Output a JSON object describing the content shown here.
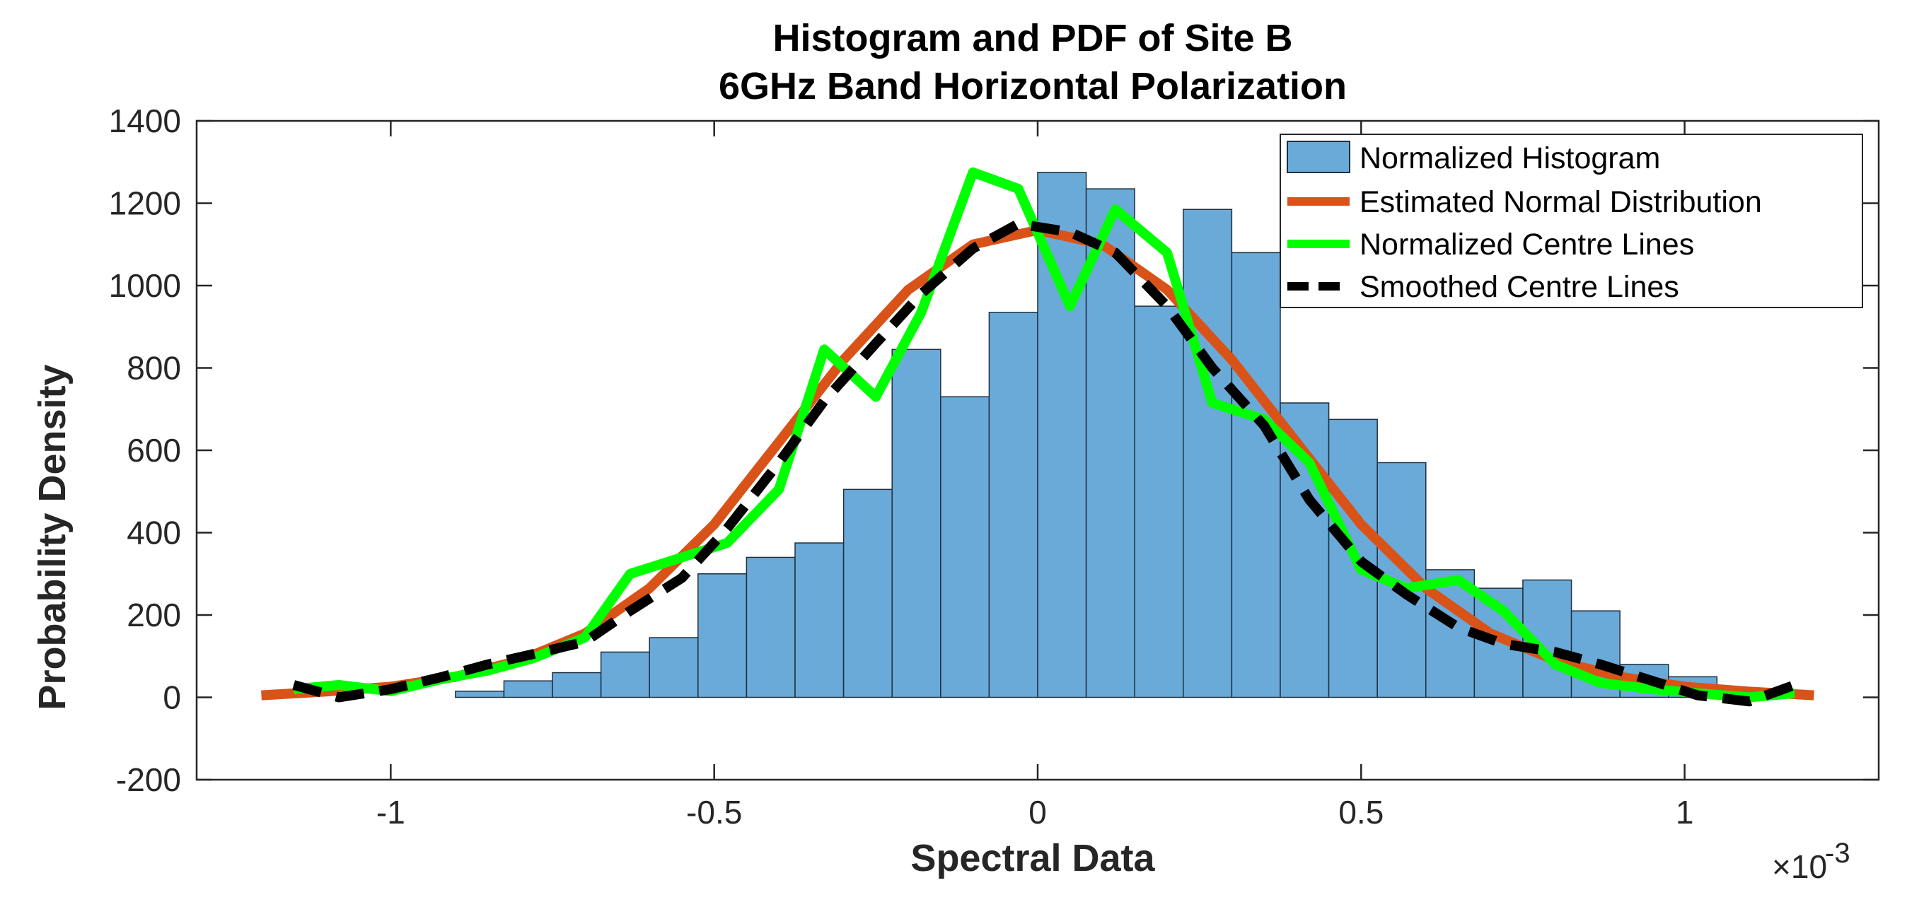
{
  "chart_data": {
    "type": "histogram",
    "title": [
      "Histogram and PDF of Site B",
      "6GHz Band Horizontal Polarization"
    ],
    "xlabel": "Spectral Data",
    "ylabel": "Probability Density",
    "x_exponent_label": "×10",
    "x_exponent_power": "-3",
    "xlim": [
      -1.3,
      1.3
    ],
    "ylim": [
      -200,
      1400
    ],
    "xticks": [
      -1,
      -0.5,
      0,
      0.5,
      1
    ],
    "xtick_labels": [
      "-1",
      "-0.5",
      "0",
      "0.5",
      "1"
    ],
    "yticks": [
      -200,
      0,
      200,
      400,
      600,
      800,
      1000,
      1200,
      1400
    ],
    "ytick_labels": [
      "-200",
      "0",
      "200",
      "400",
      "600",
      "800",
      "1000",
      "1200",
      "1400"
    ],
    "grid": false,
    "legend_position": "top-right",
    "colors": {
      "histogram_fill": "#6aaad8",
      "histogram_edge": "#1f2f3f",
      "normal": "#d95319",
      "centre": "#00ff00",
      "smoothed": "#000000",
      "axis": "#262626"
    },
    "histogram": {
      "name": "Normalized Histogram",
      "bin_width": 0.075,
      "bin_edges_start": -0.9,
      "values": [
        15,
        40,
        60,
        110,
        145,
        300,
        340,
        375,
        505,
        845,
        730,
        935,
        1275,
        1235,
        950,
        1185,
        1080,
        715,
        675,
        570,
        310,
        265,
        285,
        210,
        80,
        50
      ]
    },
    "series": [
      {
        "name": "Estimated Normal Distribution",
        "style": "solid",
        "x": [
          -1.2,
          -1.1,
          -1.0,
          -0.9,
          -0.8,
          -0.7,
          -0.6,
          -0.5,
          -0.4,
          -0.3,
          -0.2,
          -0.1,
          0.0,
          0.1,
          0.2,
          0.3,
          0.4,
          0.5,
          0.6,
          0.7,
          0.8,
          0.9,
          1.0,
          1.1,
          1.2
        ],
        "y": [
          5,
          14,
          26,
          50,
          90,
          155,
          265,
          420,
          620,
          820,
          990,
          1100,
          1135,
          1100,
          990,
          820,
          620,
          420,
          265,
          155,
          90,
          50,
          26,
          14,
          5
        ]
      },
      {
        "name": "Normalized Centre Lines",
        "style": "solid",
        "x": [
          -1.15,
          -1.08,
          -1.0,
          -0.92,
          -0.85,
          -0.78,
          -0.7,
          -0.63,
          -0.55,
          -0.48,
          -0.4,
          -0.33,
          -0.25,
          -0.18,
          -0.1,
          -0.03,
          0.05,
          0.12,
          0.2,
          0.27,
          0.35,
          0.42,
          0.5,
          0.57,
          0.65,
          0.72,
          0.8,
          0.87,
          0.95,
          1.02,
          1.1,
          1.17
        ],
        "y": [
          20,
          30,
          15,
          45,
          65,
          95,
          145,
          300,
          340,
          375,
          505,
          845,
          730,
          935,
          1275,
          1235,
          950,
          1185,
          1080,
          715,
          675,
          570,
          310,
          265,
          285,
          210,
          80,
          35,
          20,
          10,
          0,
          10
        ]
      },
      {
        "name": "Smoothed Centre Lines",
        "style": "dashed",
        "x": [
          -1.15,
          -1.08,
          -1.0,
          -0.92,
          -0.85,
          -0.78,
          -0.7,
          -0.63,
          -0.55,
          -0.48,
          -0.4,
          -0.33,
          -0.25,
          -0.18,
          -0.1,
          -0.03,
          0.05,
          0.12,
          0.2,
          0.27,
          0.35,
          0.42,
          0.5,
          0.57,
          0.65,
          0.72,
          0.8,
          0.87,
          0.95,
          1.02,
          1.1,
          1.17
        ],
        "y": [
          30,
          0,
          20,
          50,
          80,
          105,
          135,
          210,
          290,
          410,
          570,
          720,
          860,
          980,
          1090,
          1150,
          1130,
          1080,
          950,
          800,
          660,
          480,
          330,
          250,
          170,
          130,
          110,
          80,
          40,
          5,
          -10,
          30
        ]
      }
    ]
  }
}
